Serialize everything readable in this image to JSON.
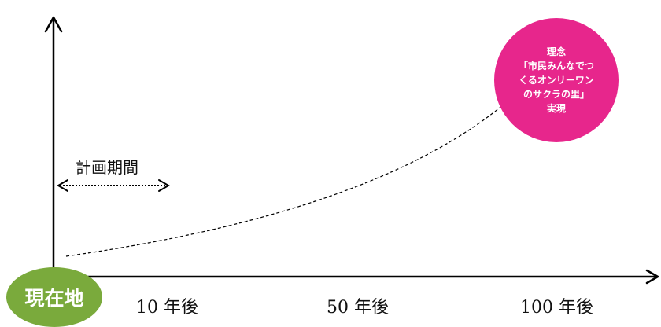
{
  "colors": {
    "start_circle": "#7aaa3c",
    "goal_circle": "#e7268c",
    "axis": "#000000"
  },
  "start_label": "現在地",
  "goal_label_lines": [
    "理念",
    "「市民みんなでつ",
    "くるオンリーワン",
    "のサクラの里」",
    "実現"
  ],
  "period_label": "計画期間",
  "x_ticks": [
    "10 年後",
    "50 年後",
    "100 年後"
  ]
}
